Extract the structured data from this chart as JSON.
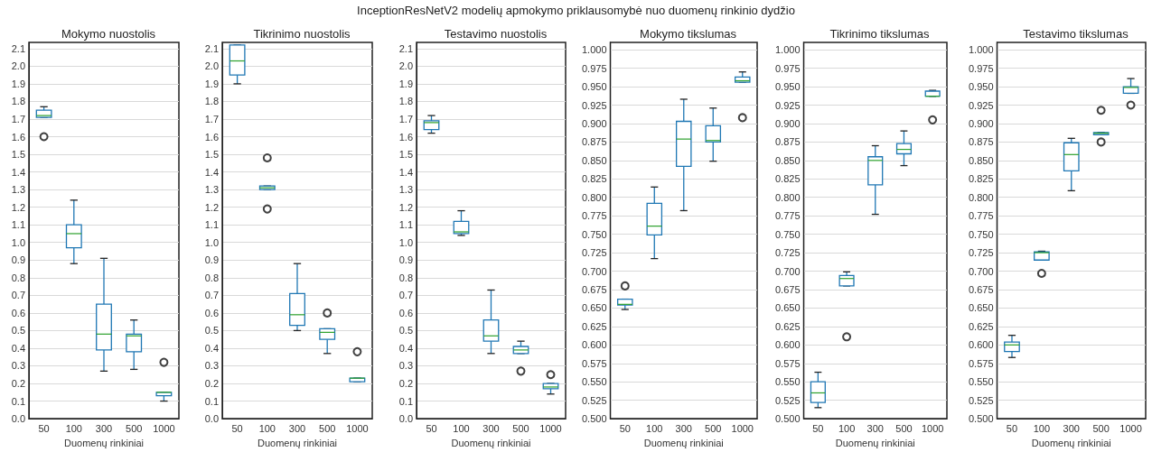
{
  "chart_data": [
    {
      "type": "box",
      "title": "Mokymo nuostolis",
      "xlabel": "Duomenų rinkiniai",
      "annotations": [
        "InceptionResNetV2 modelių apmokymo priklausomybė nuo duomenų rinkinio dydžio"
      ],
      "categories": [
        "50",
        "100",
        "300",
        "500",
        "1000"
      ],
      "color": "#1f77b4",
      "grid": "y",
      "ylim": [
        0,
        2.135
      ],
      "yticks": [
        {
          "value": 0,
          "label": "0.0"
        },
        0.1,
        0.2,
        0.3,
        0.4,
        0.5,
        0.6,
        0.7,
        0.8,
        0.9,
        {
          "value": 1,
          "label": "1.0"
        },
        1.1,
        1.2,
        1.3,
        1.4,
        1.5,
        1.6,
        1.7,
        1.8,
        1.9,
        {
          "value": 2,
          "label": "2.0"
        },
        2.1
      ],
      "boxes": [
        {
          "low": 1.71,
          "q1": 1.71,
          "median": 1.72,
          "q3": 1.75,
          "high": 1.77,
          "outliers": [
            1.6
          ]
        },
        {
          "low": 0.88,
          "q1": 0.97,
          "median": 1.05,
          "q3": 1.1,
          "high": 1.24
        },
        {
          "low": 0.27,
          "q1": 0.39,
          "median": 0.48,
          "q3": 0.65,
          "high": 0.91
        },
        {
          "low": 0.28,
          "q1": 0.38,
          "median": 0.47,
          "q3": 0.48,
          "high": 0.56
        },
        {
          "low": 0.1,
          "q1": 0.13,
          "median": 0.15,
          "q3": 0.15,
          "high": 0.15,
          "outliers": [
            0.32
          ]
        }
      ]
    },
    {
      "type": "box",
      "title": "Tikrinimo nuostolis",
      "xlabel": "Duomenų rinkiniai",
      "categories": [
        "50",
        "100",
        "300",
        "500",
        "1000"
      ],
      "color": "#1f77b4",
      "grid": "y",
      "ylim": [
        0,
        2.135
      ],
      "yticks": [
        {
          "value": 0,
          "label": "0.0"
        },
        0.1,
        0.2,
        0.3,
        0.4,
        0.5,
        0.6,
        0.7,
        0.8,
        0.9,
        {
          "value": 1,
          "label": "1.0"
        },
        1.1,
        1.2,
        1.3,
        1.4,
        1.5,
        1.6,
        1.7,
        1.8,
        1.9,
        {
          "value": 2,
          "label": "2.0"
        },
        2.1
      ],
      "boxes": [
        {
          "low": 1.9,
          "q1": 1.95,
          "median": 2.03,
          "q3": 2.12,
          "high": 2.12
        },
        {
          "low": 1.3,
          "q1": 1.3,
          "median": 1.31,
          "q3": 1.32,
          "high": 1.32,
          "outliers": [
            1.48,
            1.19
          ]
        },
        {
          "low": 0.5,
          "q1": 0.53,
          "median": 0.59,
          "q3": 0.71,
          "high": 0.88
        },
        {
          "low": 0.37,
          "q1": 0.45,
          "median": 0.49,
          "q3": 0.51,
          "high": 0.51,
          "outliers": [
            0.6
          ]
        },
        {
          "low": 0.21,
          "q1": 0.21,
          "median": 0.23,
          "q3": 0.23,
          "high": 0.23,
          "outliers": [
            0.38
          ]
        }
      ]
    },
    {
      "type": "box",
      "title": "Testavimo nuostolis",
      "xlabel": "Duomenų rinkiniai",
      "categories": [
        "50",
        "100",
        "300",
        "500",
        "1000"
      ],
      "color": "#1f77b4",
      "grid": "y",
      "ylim": [
        0,
        2.135
      ],
      "yticks": [
        {
          "value": 0,
          "label": "0.0"
        },
        0.1,
        0.2,
        0.3,
        0.4,
        0.5,
        0.6,
        0.7,
        0.8,
        0.9,
        {
          "value": 1,
          "label": "1.0"
        },
        1.1,
        1.2,
        1.3,
        1.4,
        1.5,
        1.6,
        1.7,
        1.8,
        1.9,
        {
          "value": 2,
          "label": "2.0"
        },
        2.1
      ],
      "boxes": [
        {
          "low": 1.62,
          "q1": 1.64,
          "median": 1.68,
          "q3": 1.69,
          "high": 1.72
        },
        {
          "low": 1.04,
          "q1": 1.05,
          "median": 1.06,
          "q3": 1.12,
          "high": 1.18
        },
        {
          "low": 0.37,
          "q1": 0.44,
          "median": 0.47,
          "q3": 0.56,
          "high": 0.73
        },
        {
          "low": 0.37,
          "q1": 0.37,
          "median": 0.39,
          "q3": 0.41,
          "high": 0.44,
          "outliers": [
            0.27
          ]
        },
        {
          "low": 0.14,
          "q1": 0.17,
          "median": 0.18,
          "q3": 0.2,
          "high": 0.2,
          "outliers": [
            0.25
          ]
        }
      ]
    },
    {
      "type": "box",
      "title": "Mokymo tikslumas",
      "xlabel": "Duomenų rinkiniai",
      "categories": [
        "50",
        "100",
        "300",
        "500",
        "1000"
      ],
      "color": "#1f77b4",
      "grid": "y",
      "ylim": [
        0.5,
        1.01
      ],
      "yticks": [
        {
          "value": 0.5,
          "label": "0.500"
        },
        0.525,
        {
          "value": 0.55,
          "label": "0.550"
        },
        0.575,
        {
          "value": 0.6,
          "label": "0.600"
        },
        0.625,
        {
          "value": 0.65,
          "label": "0.650"
        },
        0.675,
        {
          "value": 0.7,
          "label": "0.700"
        },
        0.725,
        {
          "value": 0.75,
          "label": "0.750"
        },
        0.775,
        {
          "value": 0.8,
          "label": "0.800"
        },
        0.825,
        {
          "value": 0.85,
          "label": "0.850"
        },
        0.875,
        {
          "value": 0.9,
          "label": "0.900"
        },
        0.925,
        {
          "value": 0.95,
          "label": "0.950"
        },
        0.975,
        {
          "value": 1,
          "label": "1.000"
        }
      ],
      "boxes": [
        {
          "low": 0.648,
          "q1": 0.654,
          "median": 0.655,
          "q3": 0.662,
          "high": 0.662,
          "outliers": [
            0.68
          ]
        },
        {
          "low": 0.717,
          "q1": 0.749,
          "median": 0.761,
          "q3": 0.792,
          "high": 0.814
        },
        {
          "low": 0.782,
          "q1": 0.842,
          "median": 0.879,
          "q3": 0.903,
          "high": 0.933
        },
        {
          "low": 0.849,
          "q1": 0.875,
          "median": 0.877,
          "q3": 0.897,
          "high": 0.921
        },
        {
          "low": 0.956,
          "q1": 0.956,
          "median": 0.958,
          "q3": 0.963,
          "high": 0.97,
          "outliers": [
            0.908
          ]
        }
      ]
    },
    {
      "type": "box",
      "title": "Tikrinimo tikslumas",
      "xlabel": "Duomenų rinkiniai",
      "categories": [
        "50",
        "100",
        "300",
        "500",
        "1000"
      ],
      "color": "#1f77b4",
      "grid": "y",
      "ylim": [
        0.5,
        1.01
      ],
      "yticks": [
        {
          "value": 0.5,
          "label": "0.500"
        },
        0.525,
        {
          "value": 0.55,
          "label": "0.550"
        },
        0.575,
        {
          "value": 0.6,
          "label": "0.600"
        },
        0.625,
        {
          "value": 0.65,
          "label": "0.650"
        },
        0.675,
        {
          "value": 0.7,
          "label": "0.700"
        },
        0.725,
        {
          "value": 0.75,
          "label": "0.750"
        },
        0.775,
        {
          "value": 0.8,
          "label": "0.800"
        },
        0.825,
        {
          "value": 0.85,
          "label": "0.850"
        },
        0.875,
        {
          "value": 0.9,
          "label": "0.900"
        },
        0.925,
        {
          "value": 0.95,
          "label": "0.950"
        },
        0.975,
        {
          "value": 1,
          "label": "1.000"
        }
      ],
      "boxes": [
        {
          "low": 0.515,
          "q1": 0.522,
          "median": 0.535,
          "q3": 0.55,
          "high": 0.563
        },
        {
          "low": 0.68,
          "q1": 0.68,
          "median": 0.69,
          "q3": 0.694,
          "high": 0.699,
          "outliers": [
            0.611
          ]
        },
        {
          "low": 0.777,
          "q1": 0.817,
          "median": 0.85,
          "q3": 0.855,
          "high": 0.87
        },
        {
          "low": 0.843,
          "q1": 0.859,
          "median": 0.865,
          "q3": 0.873,
          "high": 0.89
        },
        {
          "low": 0.937,
          "q1": 0.937,
          "median": 0.937,
          "q3": 0.944,
          "high": 0.945,
          "outliers": [
            0.905
          ]
        }
      ]
    },
    {
      "type": "box",
      "title": "Testavimo tikslumas",
      "xlabel": "Duomenų rinkiniai",
      "categories": [
        "50",
        "100",
        "300",
        "500",
        "1000"
      ],
      "color": "#1f77b4",
      "grid": "y",
      "ylim": [
        0.5,
        1.01
      ],
      "yticks": [
        {
          "value": 0.5,
          "label": "0.500"
        },
        0.525,
        {
          "value": 0.55,
          "label": "0.550"
        },
        0.575,
        {
          "value": 0.6,
          "label": "0.600"
        },
        0.625,
        {
          "value": 0.65,
          "label": "0.650"
        },
        0.675,
        {
          "value": 0.7,
          "label": "0.700"
        },
        0.725,
        {
          "value": 0.75,
          "label": "0.750"
        },
        0.775,
        {
          "value": 0.8,
          "label": "0.800"
        },
        0.825,
        {
          "value": 0.85,
          "label": "0.850"
        },
        0.875,
        {
          "value": 0.9,
          "label": "0.900"
        },
        0.925,
        {
          "value": 0.95,
          "label": "0.950"
        },
        0.975,
        {
          "value": 1,
          "label": "1.000"
        }
      ],
      "boxes": [
        {
          "low": 0.583,
          "q1": 0.591,
          "median": 0.6,
          "q3": 0.604,
          "high": 0.613
        },
        {
          "low": 0.715,
          "q1": 0.715,
          "median": 0.725,
          "q3": 0.726,
          "high": 0.727,
          "outliers": [
            0.697
          ]
        },
        {
          "low": 0.809,
          "q1": 0.836,
          "median": 0.858,
          "q3": 0.874,
          "high": 0.88
        },
        {
          "low": 0.885,
          "q1": 0.885,
          "median": 0.887,
          "q3": 0.888,
          "high": 0.888,
          "outliers": [
            0.918,
            0.875
          ]
        },
        {
          "low": 0.941,
          "q1": 0.941,
          "median": 0.949,
          "q3": 0.95,
          "high": 0.961,
          "outliers": [
            0.925
          ]
        }
      ]
    }
  ]
}
